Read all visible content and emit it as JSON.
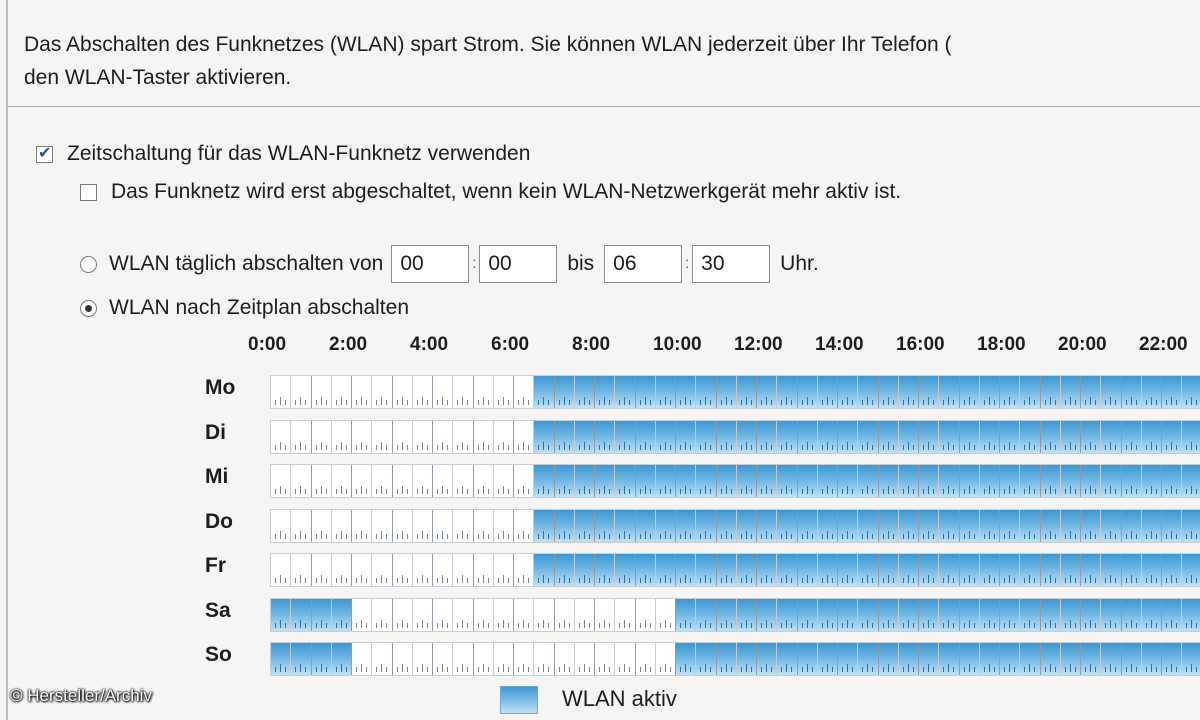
{
  "intro": {
    "line1": "Das Abschalten des Funknetzes (WLAN) spart Strom. Sie können WLAN jederzeit über Ihr Telefon (",
    "line2": "den WLAN-Taster aktivieren."
  },
  "options": {
    "use_timer": {
      "label": "Zeitschaltung für das WLAN-Funknetz verwenden",
      "checked": true
    },
    "wait_inactive": {
      "label": "Das Funknetz wird erst abgeschaltet, wenn kein WLAN-Netzwerkgerät mehr aktiv ist.",
      "checked": false
    },
    "daily": {
      "label": "WLAN täglich abschalten von",
      "selected": false,
      "from_h": "00",
      "from_m": "00",
      "bis": "bis",
      "to_h": "06",
      "to_m": "30",
      "suffix": "Uhr."
    },
    "schedule": {
      "label": "WLAN nach Zeitplan abschalten",
      "selected": true
    }
  },
  "schedule": {
    "hour_labels": [
      "0:00",
      "2:00",
      "4:00",
      "6:00",
      "8:00",
      "10:00",
      "12:00",
      "14:00",
      "16:00",
      "18:00",
      "20:00",
      "22:00"
    ],
    "days": [
      {
        "label": "Mo",
        "active_from_hour": 6.5
      },
      {
        "label": "Di",
        "active_from_hour": 6.5
      },
      {
        "label": "Mi",
        "active_from_hour": 6.5
      },
      {
        "label": "Do",
        "active_from_hour": 6.5
      },
      {
        "label": "Fr",
        "active_from_hour": 6.5
      },
      {
        "label": "Sa",
        "active_until_hour": 2,
        "active_from_hour": 10
      },
      {
        "label": "So",
        "active_until_hour": 2,
        "active_from_hour": 10
      }
    ],
    "visible_hours": 23
  },
  "legend": {
    "active_label": "WLAN aktiv"
  },
  "credit": "© Hersteller/Archiv",
  "colors": {
    "active": "#3d97d3",
    "background": "#f6f5f3"
  }
}
